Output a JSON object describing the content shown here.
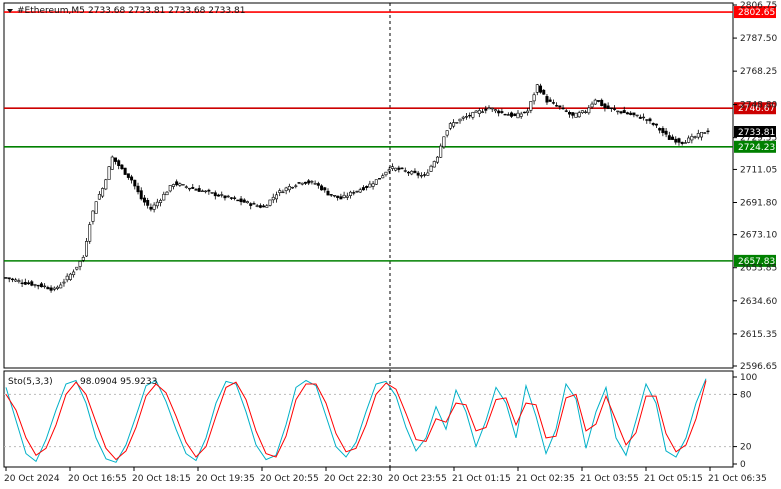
{
  "header": {
    "symbol": "#Ethereum,M5",
    "ohlc": "2733.68 2733.81 2733.68 2733.81"
  },
  "chart_data": [
    {
      "type": "candlestick",
      "title": "#Ethereum,M5",
      "price_axis": {
        "min": 2596.65,
        "max": 2806.75,
        "ticks": [
          "2806.75",
          "2787.50",
          "2768.25",
          "2748.80",
          "2729.55",
          "2711.05",
          "2691.80",
          "2673.10",
          "2653.85",
          "2634.60",
          "2615.35",
          "2596.65"
        ]
      },
      "x_labels": [
        "20 Oct 2024",
        "20 Oct 16:55",
        "20 Oct 18:15",
        "20 Oct 19:35",
        "20 Oct 20:55",
        "20 Oct 22:30",
        "20 Oct 23:55",
        "21 Oct 01:15",
        "21 Oct 02:35",
        "21 Oct 03:55",
        "21 Oct 05:15",
        "21 Oct 06:35"
      ],
      "current_price": "2733.81",
      "levels": [
        {
          "label": "2802.65",
          "value": 2802.65,
          "color": "#ff0000"
        },
        {
          "label": "2746.67",
          "value": 2746.67,
          "color": "#cc0000"
        },
        {
          "label": "2724.23",
          "value": 2724.23,
          "color": "#008000"
        },
        {
          "label": "2657.83",
          "value": 2657.83,
          "color": "#008000"
        }
      ],
      "close_path": [
        [
          0,
          2648
        ],
        [
          6,
          2645
        ],
        [
          12,
          2643
        ],
        [
          15,
          2641
        ],
        [
          18,
          2646
        ],
        [
          21,
          2652
        ],
        [
          24,
          2660
        ],
        [
          26,
          2680
        ],
        [
          28,
          2693
        ],
        [
          30,
          2700
        ],
        [
          33,
          2718
        ],
        [
          36,
          2711
        ],
        [
          39,
          2705
        ],
        [
          42,
          2694
        ],
        [
          45,
          2688
        ],
        [
          48,
          2694
        ],
        [
          52,
          2703
        ],
        [
          58,
          2700
        ],
        [
          64,
          2697
        ],
        [
          70,
          2694
        ],
        [
          76,
          2691
        ],
        [
          80,
          2689
        ],
        [
          84,
          2697
        ],
        [
          88,
          2701
        ],
        [
          92,
          2704
        ],
        [
          96,
          2703
        ],
        [
          100,
          2697
        ],
        [
          104,
          2694
        ],
        [
          108,
          2698
        ],
        [
          112,
          2701
        ],
        [
          116,
          2706
        ],
        [
          119,
          2712
        ],
        [
          122,
          2711
        ],
        [
          126,
          2709
        ],
        [
          130,
          2707
        ],
        [
          134,
          2719
        ],
        [
          136,
          2731
        ],
        [
          138,
          2737
        ],
        [
          142,
          2741
        ],
        [
          146,
          2744
        ],
        [
          150,
          2747
        ],
        [
          154,
          2744
        ],
        [
          158,
          2742
        ],
        [
          162,
          2745
        ],
        [
          165,
          2760
        ],
        [
          168,
          2751
        ],
        [
          172,
          2747
        ],
        [
          176,
          2742
        ],
        [
          180,
          2745
        ],
        [
          183,
          2752
        ],
        [
          186,
          2747
        ],
        [
          190,
          2745
        ],
        [
          194,
          2743
        ],
        [
          198,
          2741
        ],
        [
          202,
          2736
        ],
        [
          206,
          2729
        ],
        [
          210,
          2727
        ],
        [
          214,
          2730
        ],
        [
          218,
          2733.8
        ]
      ]
    },
    {
      "type": "line",
      "title": "Sto(5,3,3)",
      "readout": "98.0904 95.9233",
      "ylim": [
        0,
        100
      ],
      "ticks": [
        "100",
        "80",
        "20",
        "0"
      ],
      "series": [
        {
          "color": "#00b0c8",
          "values": [
            88,
            50,
            12,
            3,
            28,
            62,
            92,
            96,
            70,
            30,
            6,
            2,
            22,
            55,
            90,
            96,
            72,
            40,
            12,
            4,
            30,
            70,
            95,
            92,
            60,
            22,
            5,
            10,
            45,
            88,
            96,
            90,
            55,
            20,
            8,
            25,
            60,
            92,
            95,
            78,
            42,
            15,
            30,
            66,
            40,
            85,
            60,
            20,
            50,
            88,
            70,
            30,
            90,
            55,
            12,
            40,
            92,
            75,
            18,
            60,
            88,
            30,
            10,
            50,
            92,
            70,
            15,
            8,
            30,
            70,
            98
          ]
        },
        {
          "color": "#ff0000",
          "values": [
            80,
            62,
            30,
            10,
            18,
            45,
            80,
            94,
            80,
            48,
            18,
            5,
            15,
            42,
            78,
            92,
            82,
            55,
            25,
            8,
            20,
            55,
            88,
            94,
            74,
            38,
            12,
            8,
            32,
            74,
            92,
            92,
            70,
            35,
            14,
            18,
            45,
            80,
            93,
            86,
            58,
            28,
            26,
            52,
            48,
            70,
            68,
            38,
            42,
            74,
            76,
            45,
            70,
            68,
            30,
            32,
            76,
            80,
            38,
            46,
            78,
            50,
            22,
            36,
            78,
            78,
            35,
            14,
            22,
            52,
            96
          ]
        }
      ]
    }
  ]
}
